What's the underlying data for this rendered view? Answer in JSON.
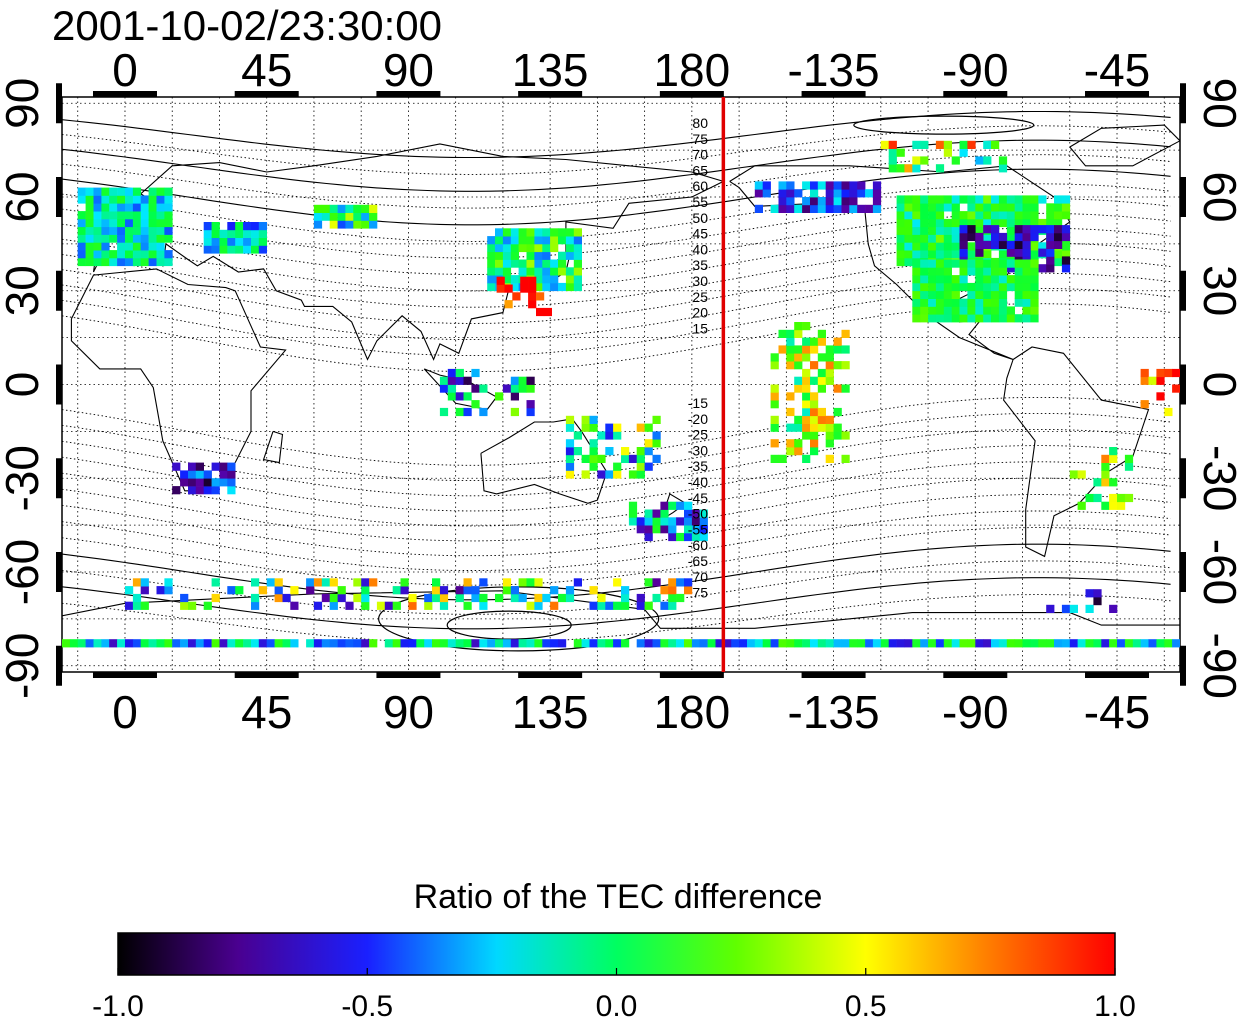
{
  "map": {
    "title": "2001-10-02/23:30:00",
    "x_ticks": [
      "0",
      "45",
      "90",
      "135",
      "180",
      "-135",
      "-90",
      "-45"
    ],
    "x_tick_values": [
      0,
      45,
      90,
      135,
      180,
      225,
      270,
      315
    ],
    "y_ticks": [
      "90",
      "60",
      "30",
      "0",
      "-30",
      "-60",
      "-90"
    ],
    "y_tick_values": [
      90,
      60,
      30,
      0,
      -30,
      -60,
      -90
    ],
    "lon_range": [
      -20,
      335
    ],
    "lat_range": [
      -92,
      92
    ],
    "grid": true,
    "red_line_lon": 190,
    "red_line_color": "#e00000",
    "magnetic_lat_labels_north": [
      "80",
      "75",
      "70",
      "65",
      "60",
      "55",
      "50",
      "45",
      "40",
      "35",
      "30",
      "25",
      "20",
      "15"
    ],
    "magnetic_lat_labels_south": [
      "-15",
      "-20",
      "-25",
      "-30",
      "-35",
      "-40",
      "-45",
      "-50",
      "-55",
      "-60",
      "-65",
      "70",
      "75"
    ]
  },
  "colorbar": {
    "label": "Ratio of the TEC difference",
    "ticks": [
      "-1.0",
      "-0.5",
      "0.0",
      "0.5",
      "1.0"
    ],
    "range": [
      -1.0,
      1.0
    ],
    "stops": [
      "#000000",
      "#5a00a0",
      "#1020ff",
      "#00e8ff",
      "#00ff40",
      "#40ff00",
      "#ffff00",
      "#ff8000",
      "#ff0000"
    ]
  }
}
